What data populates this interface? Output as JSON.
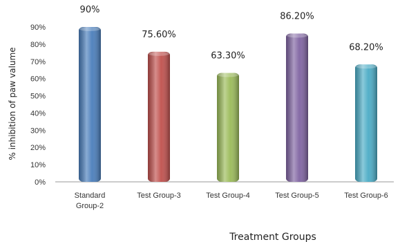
{
  "chart_data": {
    "type": "bar",
    "categories": [
      [
        "Standard",
        "Group-2"
      ],
      [
        "Test Group-3"
      ],
      [
        "Test Group-4"
      ],
      [
        "Test Group-5"
      ],
      [
        "Test Group-6"
      ]
    ],
    "values": [
      90,
      75.6,
      63.3,
      86.2,
      68.2
    ],
    "data_labels": [
      "90%",
      "75.60%",
      "63.30%",
      "86.20%",
      "68.20%"
    ],
    "colors": [
      "#4a7ebb",
      "#c0504d",
      "#9bbb59",
      "#8064a2",
      "#4bacc6"
    ],
    "ylim": [
      0,
      90
    ],
    "yticks": [
      "0%",
      "10%",
      "20%",
      "30%",
      "40%",
      "50%",
      "60%",
      "70%",
      "80%",
      "90%"
    ],
    "ylabel": "% inhibition of paw valume",
    "xlabel": "Treatment Groups",
    "grid": false
  }
}
